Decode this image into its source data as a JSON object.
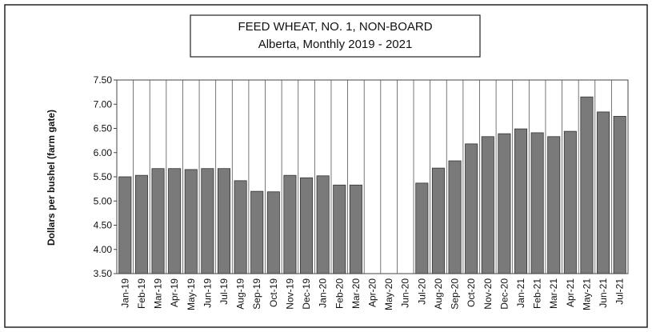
{
  "chart_data": {
    "type": "bar",
    "title": "FEED WHEAT, NO. 1, NON-BOARD",
    "subtitle": "Alberta, Monthly 2019 - 2021",
    "y_label": "Dollars per bushel (farm gate)",
    "categories": [
      "Jan-19",
      "Feb-19",
      "Mar-19",
      "Apr-19",
      "May-19",
      "Jun-19",
      "Jul-19",
      "Aug-19",
      "Sep-19",
      "Oct-19",
      "Nov-19",
      "Dec-19",
      "Jan-20",
      "Feb-20",
      "Mar-20",
      "Apr-20",
      "May-20",
      "Jun-20",
      "Jul-20",
      "Aug-20",
      "Sep-20",
      "Oct-20",
      "Nov-20",
      "Dec-20",
      "Jan-21",
      "Feb-21",
      "Mar-21",
      "Apr-21",
      "May-21",
      "Jun-21",
      "Jul-21"
    ],
    "values": [
      5.5,
      5.53,
      5.67,
      5.67,
      5.65,
      5.67,
      5.67,
      5.42,
      5.2,
      5.19,
      5.53,
      5.48,
      5.52,
      5.33,
      5.33,
      null,
      null,
      null,
      5.37,
      5.68,
      5.83,
      6.18,
      6.33,
      6.39,
      6.49,
      6.41,
      6.33,
      6.44,
      7.15,
      6.84,
      6.75
    ],
    "color": "#7a7a7a",
    "ylim": [
      3.5,
      7.5
    ],
    "yticks": [
      {
        "value": 3.5,
        "label": "3.50"
      },
      {
        "value": 4,
        "label": "4.00"
      },
      {
        "value": 4.5,
        "label": "4.50"
      },
      {
        "value": 5,
        "label": "5.00"
      },
      {
        "value": 5.5,
        "label": "5.50"
      },
      {
        "value": 6,
        "label": "6.00"
      },
      {
        "value": 6.5,
        "label": "6.50"
      },
      {
        "value": 7,
        "label": "7.00"
      },
      {
        "value": 7.5,
        "label": "7.50"
      }
    ],
    "grid": false
  }
}
